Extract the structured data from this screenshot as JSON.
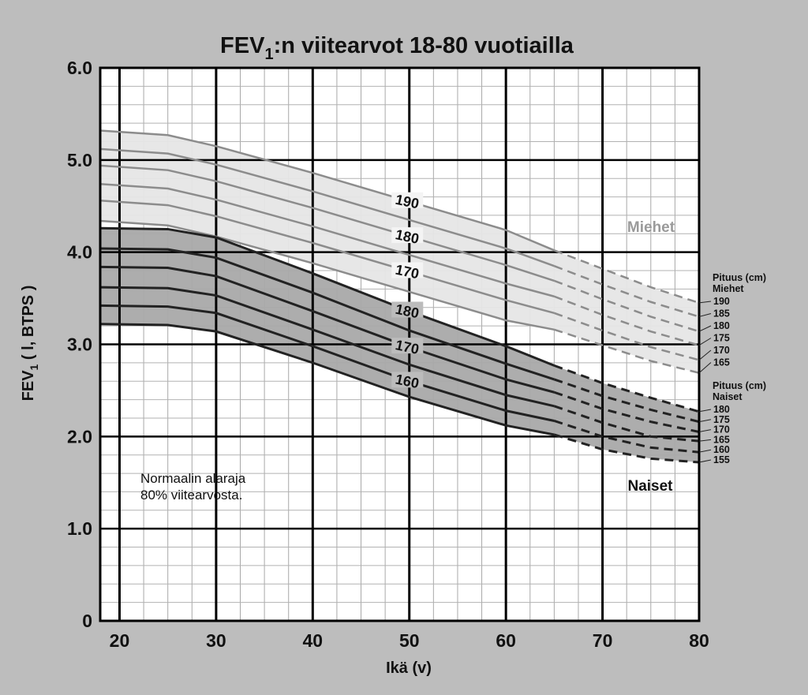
{
  "chart_data": {
    "type": "line",
    "title": "FEV",
    "title_sub": "1",
    "title_rest": ":n viitearvot 18-80 vuotiailla",
    "xlabel": "Ikä (v)",
    "ylabel": "FEV",
    "ylabel_sub": "1",
    "ylabel_rest": " ( l, BTPS )",
    "xlim": [
      18,
      80
    ],
    "ylim": [
      0,
      6.0
    ],
    "x_ticks": [
      "20",
      "30",
      "40",
      "50",
      "60",
      "70",
      "80"
    ],
    "y_ticks": [
      "0",
      "1.0",
      "2.0",
      "3.0",
      "4.0",
      "5.0",
      "6.0"
    ],
    "grid": true,
    "band_labels": {
      "men": "Miehet",
      "women": "Naiset"
    },
    "legend": {
      "men_heading": [
        "Pituus (cm)",
        "Miehet"
      ],
      "women_heading": [
        "Pituus (cm)",
        "Naiset"
      ]
    },
    "annotation": [
      "Normaalin alaraja",
      "80% viitearvosta."
    ],
    "inline_labels": {
      "men": [
        "190",
        "180",
        "170"
      ],
      "women": [
        "180",
        "170",
        "160"
      ]
    },
    "colors": {
      "men_band": "#e6e6e6",
      "women_band": "#a9a9a9",
      "men_line": "#8c8c8c",
      "women_line": "#222222"
    },
    "x": [
      18,
      25,
      30,
      40,
      50,
      60,
      65,
      70,
      75,
      80
    ],
    "measured_until_age": 65,
    "series": [
      {
        "group": "men",
        "name": "190",
        "values": [
          5.32,
          5.27,
          5.15,
          4.86,
          4.55,
          4.24,
          4.02,
          3.82,
          3.62,
          3.45
        ]
      },
      {
        "group": "men",
        "name": "185",
        "values": [
          5.12,
          5.07,
          4.95,
          4.66,
          4.35,
          4.04,
          3.85,
          3.65,
          3.46,
          3.3
        ]
      },
      {
        "group": "men",
        "name": "180",
        "values": [
          4.94,
          4.89,
          4.77,
          4.48,
          4.17,
          3.86,
          3.69,
          3.49,
          3.3,
          3.14
        ]
      },
      {
        "group": "men",
        "name": "175",
        "values": [
          4.74,
          4.69,
          4.57,
          4.28,
          3.97,
          3.66,
          3.52,
          3.32,
          3.14,
          2.99
        ]
      },
      {
        "group": "men",
        "name": "170",
        "values": [
          4.56,
          4.51,
          4.39,
          4.1,
          3.79,
          3.48,
          3.34,
          3.15,
          2.97,
          2.83
        ]
      },
      {
        "group": "men",
        "name": "165",
        "values": [
          4.34,
          4.29,
          4.17,
          3.88,
          3.57,
          3.26,
          3.16,
          2.99,
          2.82,
          2.69
        ]
      },
      {
        "group": "women",
        "name": "180",
        "values": [
          4.26,
          4.25,
          4.16,
          3.77,
          3.36,
          2.98,
          2.77,
          2.58,
          2.42,
          2.27
        ]
      },
      {
        "group": "women",
        "name": "175",
        "values": [
          4.04,
          4.03,
          3.94,
          3.56,
          3.15,
          2.79,
          2.62,
          2.44,
          2.29,
          2.16
        ]
      },
      {
        "group": "women",
        "name": "170",
        "values": [
          3.84,
          3.83,
          3.74,
          3.36,
          2.97,
          2.62,
          2.48,
          2.3,
          2.16,
          2.05
        ]
      },
      {
        "group": "women",
        "name": "165",
        "values": [
          3.62,
          3.61,
          3.53,
          3.16,
          2.78,
          2.45,
          2.33,
          2.15,
          2.0,
          1.95
        ]
      },
      {
        "group": "women",
        "name": "160",
        "values": [
          3.42,
          3.41,
          3.34,
          2.98,
          2.6,
          2.28,
          2.17,
          2.0,
          1.88,
          1.83
        ]
      },
      {
        "group": "women",
        "name": "155",
        "values": [
          3.22,
          3.21,
          3.14,
          2.8,
          2.43,
          2.12,
          2.02,
          1.86,
          1.76,
          1.72
        ]
      }
    ]
  }
}
